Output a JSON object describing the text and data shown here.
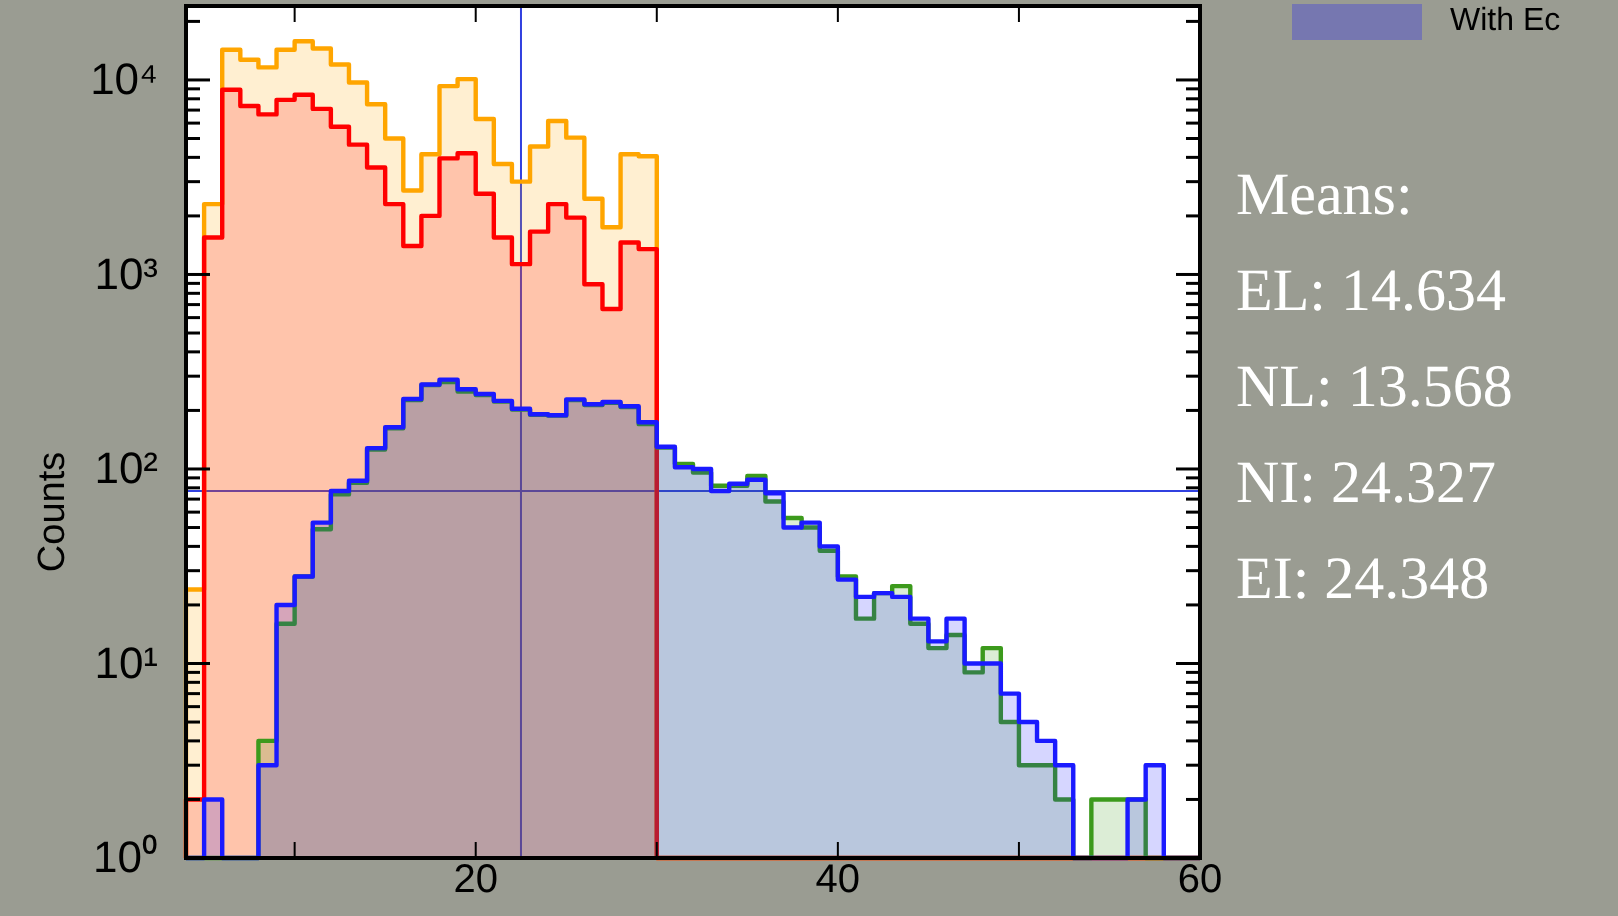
{
  "chart_data": {
    "type": "histogram",
    "ylabel": "Counts",
    "log": "y",
    "bins": [
      4,
      5,
      6,
      7,
      8,
      9,
      10,
      11,
      12,
      13,
      14,
      15,
      16,
      17,
      18,
      19,
      20,
      21,
      22,
      23,
      24,
      25,
      26,
      27,
      28,
      29,
      30,
      31,
      32,
      33,
      34,
      35,
      36,
      37,
      38,
      39,
      40,
      41,
      42,
      43,
      44,
      45,
      46,
      47,
      48,
      49,
      50,
      51,
      52,
      53,
      54,
      55,
      56,
      57,
      58,
      59,
      60
    ],
    "series": [
      {
        "color": "#ffa500",
        "values": [
          24,
          2300,
          14300,
          12700,
          11600,
          14300,
          15800,
          14500,
          12000,
          9700,
          7500,
          5000,
          2700,
          4150,
          9300,
          10100,
          6300,
          3700,
          3000,
          4550,
          6150,
          5050,
          2450,
          1750,
          4150,
          4050,
          null,
          null,
          null,
          null,
          null,
          null,
          null,
          null,
          null,
          null,
          null,
          null,
          null,
          null,
          null,
          null,
          null,
          null,
          null,
          null,
          null,
          null,
          null,
          null,
          null,
          null,
          null,
          null,
          null,
          null
        ]
      },
      {
        "color": "#ff0000",
        "values": [
          2,
          1550,
          8900,
          7350,
          6650,
          7900,
          8400,
          7100,
          5750,
          4650,
          3550,
          2300,
          1400,
          2000,
          3950,
          4200,
          2600,
          1550,
          1130,
          1660,
          2300,
          1960,
          890,
          665,
          1460,
          1350,
          null,
          null,
          null,
          null,
          null,
          null,
          null,
          null,
          null,
          null,
          null,
          null,
          null,
          null,
          null,
          null,
          null,
          null,
          null,
          null,
          null,
          null,
          null,
          null,
          null,
          null,
          null,
          null,
          null,
          null
        ]
      },
      {
        "color": "#3c9a1c",
        "values": [
          null,
          null,
          null,
          null,
          4,
          16,
          28,
          49,
          74,
          85,
          126,
          162,
          226,
          270,
          280,
          250,
          240,
          222,
          202,
          190,
          188,
          226,
          213,
          219,
          208,
          170,
          129,
          106,
          96,
          82,
          82,
          92,
          68,
          56,
          50,
          38,
          28,
          17,
          23,
          25,
          16,
          12,
          14,
          9,
          12,
          5,
          3,
          3,
          2,
          null,
          2,
          2,
          2,
          null,
          null,
          null
        ]
      },
      {
        "name": "With Ec",
        "color": "#1a1aff",
        "values": [
          null,
          2,
          null,
          null,
          3,
          20,
          28,
          53,
          77,
          87,
          128,
          164,
          229,
          272,
          288,
          257,
          243,
          224,
          204,
          191,
          189,
          228,
          215,
          221,
          210,
          174,
          130,
          102,
          100,
          77,
          84,
          88,
          75,
          50,
          53,
          40,
          27,
          22,
          23,
          22,
          17,
          13,
          17,
          10,
          10,
          7,
          5,
          4,
          3,
          null,
          null,
          null,
          2,
          3,
          null,
          null
        ]
      }
    ],
    "xlim": [
      4,
      60
    ],
    "xticks": [
      {
        "value": 10,
        "label": null
      },
      20,
      {
        "value": 30,
        "label": null
      },
      40,
      {
        "value": 50,
        "label": null
      },
      60
    ],
    "ylim": [
      1,
      24000
    ],
    "yticks": [
      {
        "value": 1,
        "label": "10⁰"
      },
      {
        "value": 2,
        "label": null
      },
      {
        "value": 3,
        "label": null
      },
      {
        "value": 4,
        "label": null
      },
      {
        "value": 5,
        "label": null
      },
      {
        "value": 6,
        "label": null
      },
      {
        "value": 7,
        "label": null
      },
      {
        "value": 8,
        "label": null
      },
      {
        "value": 9,
        "label": null
      },
      {
        "value": 10,
        "label": "10¹"
      },
      {
        "value": 20,
        "label": null
      },
      {
        "value": 30,
        "label": null
      },
      {
        "value": 40,
        "label": null
      },
      {
        "value": 50,
        "label": null
      },
      {
        "value": 60,
        "label": null
      },
      {
        "value": 70,
        "label": null
      },
      {
        "value": 80,
        "label": null
      },
      {
        "value": 90,
        "label": null
      },
      {
        "value": 100,
        "label": "10²"
      },
      {
        "value": 200,
        "label": null
      },
      {
        "value": 300,
        "label": null
      },
      {
        "value": 400,
        "label": null
      },
      {
        "value": 500,
        "label": null
      },
      {
        "value": 600,
        "label": null
      },
      {
        "value": 700,
        "label": null
      },
      {
        "value": 800,
        "label": null
      },
      {
        "value": 900,
        "label": null
      },
      {
        "value": 1000,
        "label": "10³"
      },
      {
        "value": 2000,
        "label": null
      },
      {
        "value": 3000,
        "label": null
      },
      {
        "value": 4000,
        "label": null
      },
      {
        "value": 5000,
        "label": null
      },
      {
        "value": 6000,
        "label": null
      },
      {
        "value": 7000,
        "label": null
      },
      {
        "value": 8000,
        "label": null
      },
      {
        "value": 9000,
        "label": null
      },
      {
        "value": 10000,
        "label": "10⁴"
      },
      {
        "value": 20000,
        "label": null
      }
    ],
    "ref_lines": [
      {
        "axis": "x",
        "value": 22.5,
        "color": "#3040e0"
      },
      {
        "axis": "y",
        "value": 77,
        "color": "#3040e0"
      }
    ],
    "legend": "top right",
    "annotations": [
      "Means:",
      "EL: 14.634",
      "NL: 13.568",
      "NI: 24.327",
      "EI: 24.348"
    ]
  }
}
